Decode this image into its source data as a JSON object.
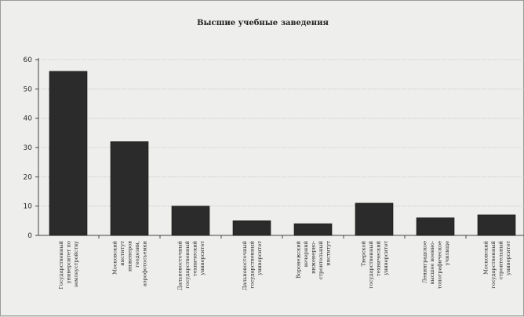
{
  "chart_data": {
    "type": "bar",
    "title": "Высшие учебные заведения",
    "xlabel": "",
    "ylabel": "",
    "ylim": [
      0,
      60
    ],
    "yticks": [
      0,
      10,
      20,
      30,
      40,
      50,
      60
    ],
    "grid": true,
    "legend": "none",
    "bar_color": "#2b2b2b",
    "categories": [
      [
        "Государственный",
        "университет по",
        "землеустройству"
      ],
      [
        "Московский",
        "институт",
        "инженеров",
        "геодезии,",
        "аэрофотосъемки"
      ],
      [
        "Дальневосточный",
        "государственный",
        "технический",
        "университет"
      ],
      [
        "Дальневосточный",
        "государственный",
        "университет"
      ],
      [
        "Воронежский",
        "вечерний",
        "инженерно-",
        "строительный",
        "институт"
      ],
      [
        "Тверской",
        "государственный",
        "технический",
        "университет"
      ],
      [
        "Ленинградское",
        "высшее военно-",
        "топографическое",
        "училище"
      ],
      [
        "Московский",
        "государственный",
        "строительный",
        "университет"
      ]
    ],
    "values": [
      56,
      32,
      10,
      5,
      4,
      11,
      6,
      7
    ]
  }
}
